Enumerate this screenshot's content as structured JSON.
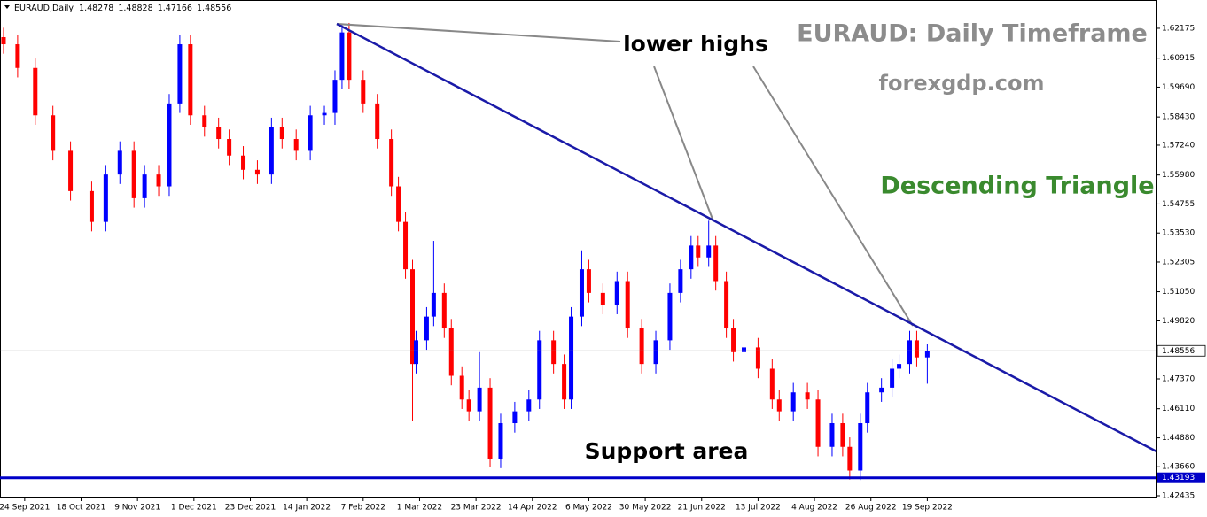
{
  "chart_data": {
    "type": "candlestick",
    "symbol": "EURAUD,Daily",
    "title": "EURAUD: Daily Timeframe",
    "subtitle": "forexgdp.com",
    "pattern_label": "Descending Triangle",
    "annotations": [
      "lower highs",
      "Support area"
    ],
    "up_color": "#0000ff",
    "down_color": "#ff0000",
    "support_color": "#0000c8",
    "support_level": 1.43193,
    "xlim": [
      -1,
      327
    ],
    "ylim": [
      1.4236,
      1.6337
    ],
    "yticks": [
      1.62175,
      1.60915,
      {
        "value": 1.5969,
        "label": "1.59690"
      },
      {
        "value": 1.5843,
        "label": "1.58430"
      },
      {
        "value": 1.5724,
        "label": "1.57240"
      },
      {
        "value": 1.5598,
        "label": "1.55980"
      },
      1.54755,
      {
        "value": 1.5353,
        "label": "1.53530"
      },
      1.52305,
      {
        "value": 1.5105,
        "label": "1.51050"
      },
      {
        "value": 1.4982,
        "label": "1.49820"
      },
      {
        "value": 1.4737,
        "label": "1.47370"
      },
      {
        "value": 1.4611,
        "label": "1.46110"
      },
      {
        "value": 1.4488,
        "label": "1.44880"
      },
      {
        "value": 1.4366,
        "label": "1.43660"
      },
      1.42435
    ],
    "xticks": [
      {
        "value": 6,
        "label": "24 Sep 2021"
      },
      {
        "value": 22,
        "label": "18 Oct 2021"
      },
      {
        "value": 38,
        "label": "9 Nov 2021"
      },
      {
        "value": 54,
        "label": "1 Dec 2021"
      },
      {
        "value": 70,
        "label": "23 Dec 2021"
      },
      {
        "value": 86,
        "label": "14 Jan 2022"
      },
      {
        "value": 102,
        "label": "7 Feb 2022"
      },
      {
        "value": 118,
        "label": "1 Mar 2022"
      },
      {
        "value": 134,
        "label": "23 Mar 2022"
      },
      {
        "value": 150,
        "label": "14 Apr 2022"
      },
      {
        "value": 166,
        "label": "6 May 2022"
      },
      {
        "value": 182,
        "label": "30 May 2022"
      },
      {
        "value": 198,
        "label": "21 Jun 2022"
      },
      {
        "value": 214,
        "label": "13 Jul 2022"
      },
      {
        "value": 230,
        "label": "4 Aug 2022"
      },
      {
        "value": 246,
        "label": "26 Aug 2022"
      },
      {
        "value": 262,
        "label": "19 Sep 2022"
      }
    ],
    "x": [
      0,
      4,
      9,
      14,
      19,
      25,
      29,
      33,
      37,
      40,
      44,
      47,
      50,
      53,
      57,
      61,
      64,
      68,
      72,
      76,
      79,
      83,
      87,
      91,
      94,
      96,
      98,
      102,
      106,
      110,
      112,
      114,
      116,
      117,
      120,
      122,
      125,
      127,
      130,
      132,
      135,
      138,
      141,
      145,
      149,
      152,
      156,
      159,
      161,
      164,
      166,
      170,
      174,
      177,
      181,
      185,
      189,
      192,
      195,
      197,
      200,
      202,
      205,
      207,
      210,
      214,
      218,
      220,
      224,
      228,
      231,
      235,
      238,
      240,
      243,
      245,
      249,
      252,
      254,
      257,
      259,
      262
    ],
    "ohlc": [
      [
        1.618,
        1.622,
        1.611,
        1.615
      ],
      [
        1.615,
        1.619,
        1.601,
        1.605
      ],
      [
        1.605,
        1.609,
        1.581,
        1.585
      ],
      [
        1.585,
        1.589,
        1.566,
        1.57
      ],
      [
        1.57,
        1.574,
        1.549,
        1.553
      ],
      [
        1.553,
        1.557,
        1.536,
        1.54
      ],
      [
        1.54,
        1.564,
        1.536,
        1.56
      ],
      [
        1.56,
        1.574,
        1.556,
        1.57
      ],
      [
        1.57,
        1.574,
        1.546,
        1.55
      ],
      [
        1.55,
        1.564,
        1.546,
        1.56
      ],
      [
        1.56,
        1.564,
        1.551,
        1.555
      ],
      [
        1.555,
        1.594,
        1.551,
        1.59
      ],
      [
        1.59,
        1.619,
        1.586,
        1.615
      ],
      [
        1.615,
        1.619,
        1.581,
        1.585
      ],
      [
        1.585,
        1.589,
        1.576,
        1.58
      ],
      [
        1.58,
        1.584,
        1.571,
        1.575
      ],
      [
        1.575,
        1.579,
        1.564,
        1.568
      ],
      [
        1.568,
        1.572,
        1.558,
        1.562
      ],
      [
        1.562,
        1.566,
        1.556,
        1.56
      ],
      [
        1.56,
        1.584,
        1.556,
        1.58
      ],
      [
        1.58,
        1.584,
        1.571,
        1.575
      ],
      [
        1.575,
        1.579,
        1.566,
        1.57
      ],
      [
        1.57,
        1.589,
        1.566,
        1.585
      ],
      [
        1.585,
        1.589,
        1.581,
        1.586
      ],
      [
        1.586,
        1.604,
        1.581,
        1.6
      ],
      [
        1.6,
        1.6235,
        1.596,
        1.62
      ],
      [
        1.62,
        1.624,
        1.596,
        1.6
      ],
      [
        1.6,
        1.604,
        1.586,
        1.59
      ],
      [
        1.59,
        1.594,
        1.571,
        1.575
      ],
      [
        1.575,
        1.579,
        1.551,
        1.555
      ],
      [
        1.555,
        1.559,
        1.536,
        1.54
      ],
      [
        1.54,
        1.544,
        1.516,
        1.52
      ],
      [
        1.52,
        1.524,
        1.456,
        1.48
      ],
      [
        1.48,
        1.494,
        1.476,
        1.49
      ],
      [
        1.49,
        1.504,
        1.486,
        1.5
      ],
      [
        1.5,
        1.532,
        1.496,
        1.51
      ],
      [
        1.51,
        1.514,
        1.491,
        1.495
      ],
      [
        1.495,
        1.499,
        1.471,
        1.475
      ],
      [
        1.475,
        1.479,
        1.461,
        1.465
      ],
      [
        1.465,
        1.469,
        1.456,
        1.46
      ],
      [
        1.46,
        1.485,
        1.456,
        1.47
      ],
      [
        1.47,
        1.474,
        1.4365,
        1.44
      ],
      [
        1.44,
        1.459,
        1.436,
        1.455
      ],
      [
        1.455,
        1.464,
        1.451,
        1.46
      ],
      [
        1.46,
        1.469,
        1.456,
        1.465
      ],
      [
        1.465,
        1.494,
        1.461,
        1.49
      ],
      [
        1.49,
        1.494,
        1.476,
        1.48
      ],
      [
        1.48,
        1.484,
        1.461,
        1.465
      ],
      [
        1.465,
        1.504,
        1.461,
        1.5
      ],
      [
        1.5,
        1.528,
        1.496,
        1.52
      ],
      [
        1.52,
        1.524,
        1.506,
        1.51
      ],
      [
        1.51,
        1.514,
        1.501,
        1.505
      ],
      [
        1.505,
        1.519,
        1.501,
        1.515
      ],
      [
        1.515,
        1.519,
        1.491,
        1.495
      ],
      [
        1.495,
        1.499,
        1.476,
        1.48
      ],
      [
        1.48,
        1.494,
        1.476,
        1.49
      ],
      [
        1.49,
        1.514,
        1.486,
        1.51
      ],
      [
        1.51,
        1.524,
        1.506,
        1.52
      ],
      [
        1.52,
        1.534,
        1.516,
        1.53
      ],
      [
        1.53,
        1.534,
        1.521,
        1.525
      ],
      [
        1.525,
        1.5405,
        1.521,
        1.53
      ],
      [
        1.53,
        1.534,
        1.511,
        1.515
      ],
      [
        1.515,
        1.519,
        1.491,
        1.495
      ],
      [
        1.495,
        1.499,
        1.481,
        1.485
      ],
      [
        1.485,
        1.491,
        1.481,
        1.487
      ],
      [
        1.487,
        1.491,
        1.474,
        1.478
      ],
      [
        1.478,
        1.482,
        1.461,
        1.465
      ],
      [
        1.465,
        1.469,
        1.456,
        1.46
      ],
      [
        1.46,
        1.472,
        1.456,
        1.468
      ],
      [
        1.468,
        1.472,
        1.461,
        1.465
      ],
      [
        1.465,
        1.469,
        1.441,
        1.445
      ],
      [
        1.445,
        1.459,
        1.441,
        1.455
      ],
      [
        1.455,
        1.459,
        1.441,
        1.445
      ],
      [
        1.445,
        1.449,
        1.4312,
        1.435
      ],
      [
        1.435,
        1.459,
        1.431,
        1.455
      ],
      [
        1.455,
        1.472,
        1.451,
        1.468
      ],
      [
        1.468,
        1.474,
        1.464,
        1.47
      ],
      [
        1.47,
        1.482,
        1.466,
        1.478
      ],
      [
        1.478,
        1.484,
        1.474,
        1.48
      ],
      [
        1.48,
        1.494,
        1.476,
        1.49
      ],
      [
        1.49,
        1.494,
        1.479,
        1.48278
      ],
      [
        1.48278,
        1.48828,
        1.47166,
        1.48556
      ]
    ]
  }
}
